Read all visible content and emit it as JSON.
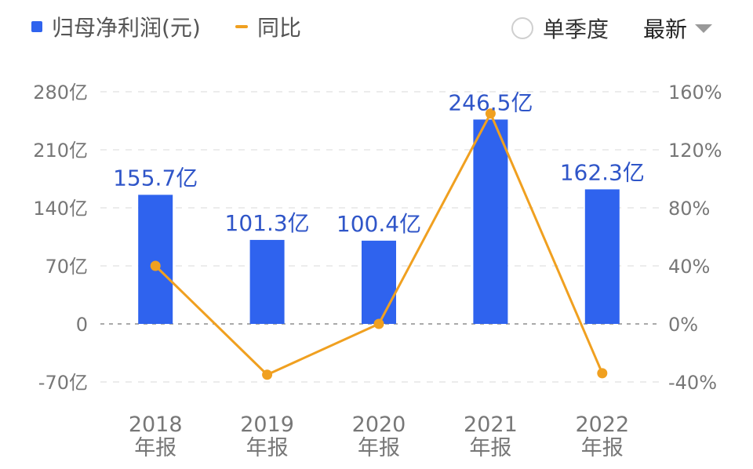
{
  "legend": {
    "bar_label": "归母净利润(元)",
    "line_label": "同比"
  },
  "controls": {
    "single_quarter_label": "单季度",
    "period_select_label": "最新"
  },
  "colors": {
    "bar": "#2f63ee",
    "line": "#f0a020",
    "value_label": "#2f55c8",
    "axis_text": "#777777",
    "grid": "#e6e6e6",
    "zero_line": "#aaaaaa"
  },
  "chart_data": {
    "type": "bar",
    "categories": [
      [
        "2018",
        "年报"
      ],
      [
        "2019",
        "年报"
      ],
      [
        "2020",
        "年报"
      ],
      [
        "2021",
        "年报"
      ],
      [
        "2022",
        "年报"
      ]
    ],
    "series": [
      {
        "name": "归母净利润(元)",
        "type": "bar",
        "axis": "left",
        "values": [
          155.7,
          101.3,
          100.4,
          246.5,
          162.3
        ],
        "labels": [
          "155.7亿",
          "101.3亿",
          "100.4亿",
          "246.5亿",
          "162.3亿"
        ]
      },
      {
        "name": "同比",
        "type": "line",
        "axis": "right",
        "values": [
          40,
          -35,
          0,
          145,
          -34
        ]
      }
    ],
    "left_axis": {
      "ticks": [
        280,
        210,
        140,
        70,
        0,
        -70
      ],
      "tick_labels": [
        "280亿",
        "210亿",
        "140亿",
        "70亿",
        "0",
        "-70亿"
      ],
      "range": [
        -70,
        280
      ]
    },
    "right_axis": {
      "ticks": [
        160,
        120,
        80,
        40,
        0,
        -40
      ],
      "tick_labels": [
        "160%",
        "120%",
        "80%",
        "40%",
        "0%",
        "-40%"
      ],
      "range": [
        -40,
        160
      ]
    },
    "grid": true,
    "legend_position": "top-left"
  }
}
